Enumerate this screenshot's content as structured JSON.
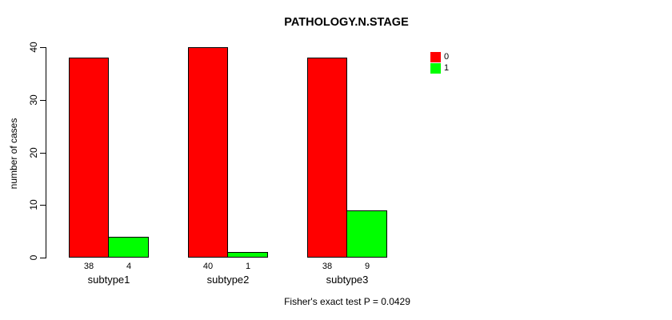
{
  "chart_data": {
    "type": "bar",
    "title": "PATHOLOGY.N.STAGE",
    "xlabel": "",
    "ylabel": "number of cases",
    "categories": [
      "subtype1",
      "subtype2",
      "subtype3"
    ],
    "series": [
      {
        "name": "0",
        "color": "#ff0000",
        "values": [
          38,
          40,
          38
        ]
      },
      {
        "name": "1",
        "color": "#00ff00",
        "values": [
          4,
          1,
          9
        ]
      }
    ],
    "bar_value_labels_shown": true,
    "ylim": [
      0,
      40
    ],
    "yticks": [
      "0",
      "10",
      "20",
      "30",
      "40"
    ],
    "grid": false,
    "legend_position": "top-right",
    "annotation": "Fisher's exact test P = 0.0429"
  }
}
